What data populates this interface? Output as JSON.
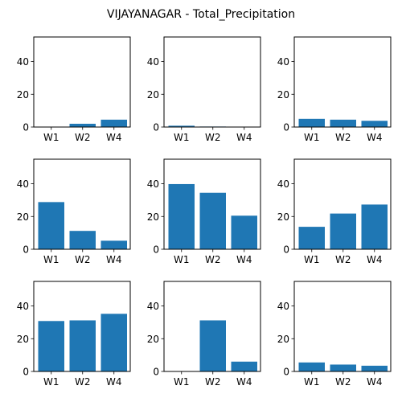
{
  "figure": {
    "title": "VIJAYANAGAR - Total_Precipitation"
  },
  "colors": {
    "bar": "#1f77b4",
    "axis": "#000000",
    "background": "#ffffff"
  },
  "chart_data": [
    {
      "type": "bar",
      "categories": [
        "W1",
        "W2",
        "W4"
      ],
      "values": [
        0,
        2.0,
        4.5
      ],
      "ylim": [
        0,
        55
      ],
      "yticks": [
        0,
        20,
        40
      ],
      "grid": false
    },
    {
      "type": "bar",
      "categories": [
        "W1",
        "W2",
        "W4"
      ],
      "values": [
        0.8,
        0.3,
        0
      ],
      "ylim": [
        0,
        55
      ],
      "yticks": [
        0,
        20,
        40
      ],
      "grid": false
    },
    {
      "type": "bar",
      "categories": [
        "W1",
        "W2",
        "W4"
      ],
      "values": [
        5.0,
        4.5,
        3.8
      ],
      "ylim": [
        0,
        55
      ],
      "yticks": [
        0,
        20,
        40
      ],
      "grid": false
    },
    {
      "type": "bar",
      "categories": [
        "W1",
        "W2",
        "W4"
      ],
      "values": [
        28.8,
        11.2,
        5.2
      ],
      "ylim": [
        0,
        55
      ],
      "yticks": [
        0,
        20,
        40
      ],
      "grid": false
    },
    {
      "type": "bar",
      "categories": [
        "W1",
        "W2",
        "W4"
      ],
      "values": [
        39.8,
        34.5,
        20.5
      ],
      "ylim": [
        0,
        55
      ],
      "yticks": [
        0,
        20,
        40
      ],
      "grid": false
    },
    {
      "type": "bar",
      "categories": [
        "W1",
        "W2",
        "W4"
      ],
      "values": [
        13.7,
        21.8,
        27.3
      ],
      "ylim": [
        0,
        55
      ],
      "yticks": [
        0,
        20,
        40
      ],
      "grid": false
    },
    {
      "type": "bar",
      "categories": [
        "W1",
        "W2",
        "W4"
      ],
      "values": [
        30.8,
        31.2,
        35.2
      ],
      "ylim": [
        0,
        55
      ],
      "yticks": [
        0,
        20,
        40
      ],
      "grid": false
    },
    {
      "type": "bar",
      "categories": [
        "W1",
        "W2",
        "W4"
      ],
      "values": [
        0,
        31.2,
        6.0
      ],
      "ylim": [
        0,
        55
      ],
      "yticks": [
        0,
        20,
        40
      ],
      "grid": false
    },
    {
      "type": "bar",
      "categories": [
        "W1",
        "W2",
        "W4"
      ],
      "values": [
        5.5,
        4.2,
        3.5
      ],
      "ylim": [
        0,
        55
      ],
      "yticks": [
        0,
        20,
        40
      ],
      "grid": false
    }
  ]
}
